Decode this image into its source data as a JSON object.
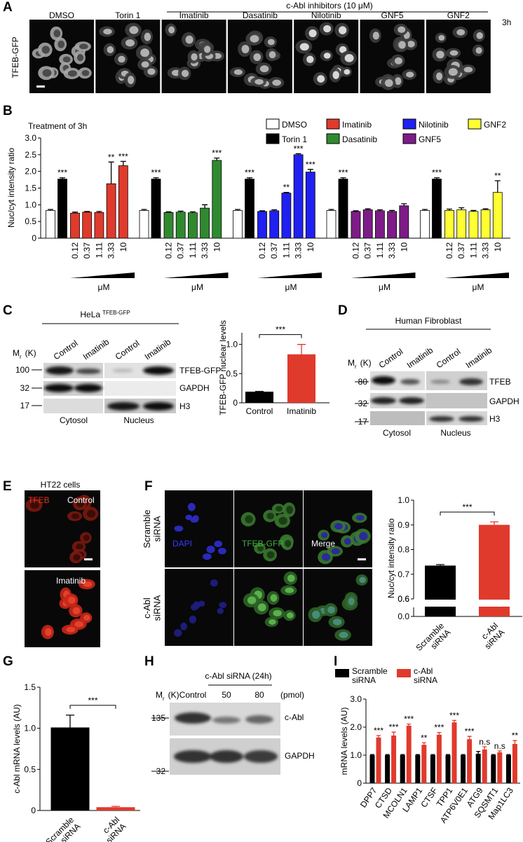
{
  "panel_labels": [
    "A",
    "B",
    "C",
    "D",
    "E",
    "F",
    "G",
    "H",
    "I"
  ],
  "panel_a": {
    "header": "c-Abl inhibitors (10 μM)",
    "time": "3h",
    "row_label": "TFEB-GFP",
    "columns": [
      "DMSO",
      "Torin 1",
      "Imatinib",
      "Dasatinib",
      "Nilotinib",
      "GNF5",
      "GNF2"
    ]
  },
  "panel_c_blot": {
    "cell_line": "HeLa",
    "cell_line_sup": "TFEB-GFP",
    "lanes": [
      "Control",
      "Imatinib",
      "Control",
      "Imatinib"
    ],
    "mr": {
      "main": "M",
      "sub": "r",
      "unit": "(K)"
    },
    "markers": [
      100,
      32,
      17
    ],
    "bands": [
      "TFEB-GFP",
      "GAPDH",
      "H3"
    ],
    "fractions": [
      "Cytosol",
      "Nucleus"
    ]
  },
  "panel_d_blot": {
    "title": "Human Fibroblast",
    "lanes": [
      "Control",
      "Imatinib",
      "Control",
      "Imatinib"
    ],
    "mr": {
      "main": "M",
      "sub": "r",
      "unit": "(K)"
    },
    "markers": [
      80,
      32,
      17
    ],
    "bands": [
      "TFEB",
      "GAPDH",
      "H3"
    ],
    "fractions": [
      "Cytosol",
      "Nucleus"
    ]
  },
  "panel_e": {
    "title": "HT22 cells",
    "stain": "TFEB",
    "conditions": [
      "Control",
      "Imatinib"
    ]
  },
  "panel_f": {
    "rows": [
      "Scramble siRNA",
      "c-Abl siRNA"
    ],
    "channels": [
      "DAPI",
      "TFEB-GFP",
      "Merge"
    ]
  },
  "panel_h_blot": {
    "title": "c-Abl siRNA (24h)",
    "mr": {
      "main": "M",
      "sub": "r",
      "unit": "(K)"
    },
    "lanes": [
      "Control",
      "50",
      "80"
    ],
    "unit": "(pmol)",
    "markers": [
      135,
      32
    ],
    "bands": [
      "c-Abl",
      "GAPDH"
    ]
  },
  "chart_data": [
    {
      "type": "grouped-bar",
      "title": "Treatment of 3h",
      "y_label": "Nuc/cyt intensity ratio",
      "ylim": [
        0,
        3
      ],
      "yticks": [
        0,
        0.5,
        {
          "value": 1,
          "label": "1.0"
        },
        1.5,
        {
          "value": 2,
          "label": "2.0"
        },
        2.5,
        {
          "value": 3,
          "label": "3.0"
        }
      ],
      "legend": [
        {
          "name": "DMSO",
          "color": "#ffffff"
        },
        {
          "name": "Torin 1",
          "color": "#000000"
        },
        {
          "name": "Imatinib",
          "color": "#e03a2c"
        },
        {
          "name": "Dasatinib",
          "color": "#2f8a2f"
        },
        {
          "name": "Nilotinib",
          "color": "#2020f0"
        },
        {
          "name": "GNF5",
          "color": "#7d1c87"
        },
        {
          "name": "GNF2",
          "color": "#ffff33"
        }
      ],
      "dose_labels": [
        "0.12",
        "0.37",
        "1.11",
        "3.33",
        "10"
      ],
      "dose_unit": "μM",
      "groups": [
        {
          "values": [
            0.83,
            1.77,
            0.75,
            0.78,
            0.77,
            1.63,
            2.17
          ],
          "errors": [
            0.03,
            0.04,
            0.03,
            0.02,
            0.03,
            0.65,
            0.13
          ],
          "stars": [
            null,
            "***",
            null,
            null,
            null,
            "**",
            "***"
          ]
        },
        {
          "values": [
            0.83,
            1.77,
            0.77,
            0.78,
            0.76,
            0.9,
            2.33
          ],
          "errors": [
            0.03,
            0.04,
            0.02,
            0.03,
            0.03,
            0.1,
            0.07
          ],
          "stars": [
            null,
            "***",
            null,
            null,
            null,
            null,
            "***"
          ]
        },
        {
          "values": [
            0.83,
            1.77,
            0.8,
            0.82,
            1.35,
            2.5,
            1.98
          ],
          "errors": [
            0.03,
            0.04,
            0.02,
            0.03,
            0.02,
            0.03,
            0.08
          ],
          "stars": [
            null,
            "***",
            null,
            null,
            "**",
            "***",
            "***"
          ]
        },
        {
          "values": [
            0.83,
            1.77,
            0.8,
            0.85,
            0.82,
            0.8,
            0.97
          ],
          "errors": [
            0.03,
            0.04,
            0.02,
            0.03,
            0.03,
            0.03,
            0.06
          ],
          "stars": [
            null,
            "***",
            null,
            null,
            null,
            null,
            null
          ]
        },
        {
          "values": [
            0.83,
            1.77,
            0.83,
            0.85,
            0.8,
            0.85,
            1.37
          ],
          "errors": [
            0.03,
            0.04,
            0.04,
            0.06,
            0.03,
            0.03,
            0.35
          ],
          "stars": [
            null,
            "***",
            null,
            null,
            null,
            null,
            "**"
          ]
        }
      ]
    },
    {
      "type": "bar",
      "y_label": "TFEB-GFP nuclear levels",
      "categories": [
        "Control",
        "Imatinib"
      ],
      "colors": [
        "#000000",
        "#e03a2c"
      ],
      "values": [
        0.19,
        0.83
      ],
      "errors": [
        0.005,
        0.17
      ],
      "ylim": [
        0,
        1.2
      ],
      "yticks": [
        0,
        0.5,
        {
          "value": 1,
          "label": "1.0"
        }
      ],
      "significance": "***"
    },
    {
      "type": "bar",
      "y_label": "Nuc/cyt intensity ratio",
      "categories": [
        "Scramble siRNA",
        "c-Abl siRNA"
      ],
      "colors": [
        "#000000",
        "#e03a2c"
      ],
      "values": [
        0.735,
        0.9
      ],
      "errors": [
        0.004,
        0.012
      ],
      "ylim": [
        0.6,
        1
      ],
      "yticks": [
        0.6,
        0.7,
        0.8,
        0.9,
        {
          "value": 1,
          "label": "1.0"
        }
      ],
      "lower_ylim": [
        0,
        0.6
      ],
      "lower_yticks": [
        {
          "value": 0,
          "label": "0.0"
        },
        0.6
      ],
      "significance": "***"
    },
    {
      "type": "bar",
      "y_label": "c-Abl mRNA levels (AU)",
      "categories": [
        "Scramble siRNA",
        "c-Abl siRNA"
      ],
      "colors": [
        "#000000",
        "#e03a2c"
      ],
      "values": [
        1.01,
        0.04
      ],
      "errors": [
        0.15,
        0.01
      ],
      "ylim": [
        0,
        1.5
      ],
      "yticks": [
        0,
        0.5,
        {
          "value": 1,
          "label": "1.0"
        },
        1.5
      ],
      "significance": "***"
    },
    {
      "type": "multi-bar",
      "y_label": "mRNA levels (AU)",
      "categories": [
        "DPP7",
        "CTSD",
        "MCOLN1",
        "LAMP1",
        "CTSF",
        "TPP1",
        "ATP6V0E1",
        "ATG9",
        "SQSMT1",
        "Map1LC3"
      ],
      "ylim": [
        0,
        3
      ],
      "yticks": [
        0,
        {
          "value": 1,
          "label": "1.0"
        },
        {
          "value": 2,
          "label": "2.0"
        },
        {
          "value": 3,
          "label": "3.0"
        }
      ],
      "series": [
        {
          "name": "Scramble siRNA",
          "color": "#000000",
          "values": [
            1,
            1,
            1,
            1,
            1,
            1,
            1,
            1.05,
            1,
            1
          ],
          "errors": [
            0.02,
            0.02,
            0.02,
            0.02,
            0.02,
            0.02,
            0.02,
            0.08,
            0.02,
            0.02
          ]
        },
        {
          "name": "c-Abl siRNA",
          "color": "#e03a2c",
          "values": [
            1.63,
            1.7,
            2.05,
            1.37,
            1.73,
            2.17,
            1.57,
            1.2,
            1.1,
            1.4
          ],
          "errors": [
            0.07,
            0.12,
            0.06,
            0.07,
            0.08,
            0.07,
            0.1,
            0.1,
            0.05,
            0.12
          ],
          "stars": [
            "***",
            "***",
            "***",
            "**",
            "***",
            "***",
            "***",
            "n.s",
            "n.s",
            "**"
          ]
        }
      ]
    }
  ]
}
